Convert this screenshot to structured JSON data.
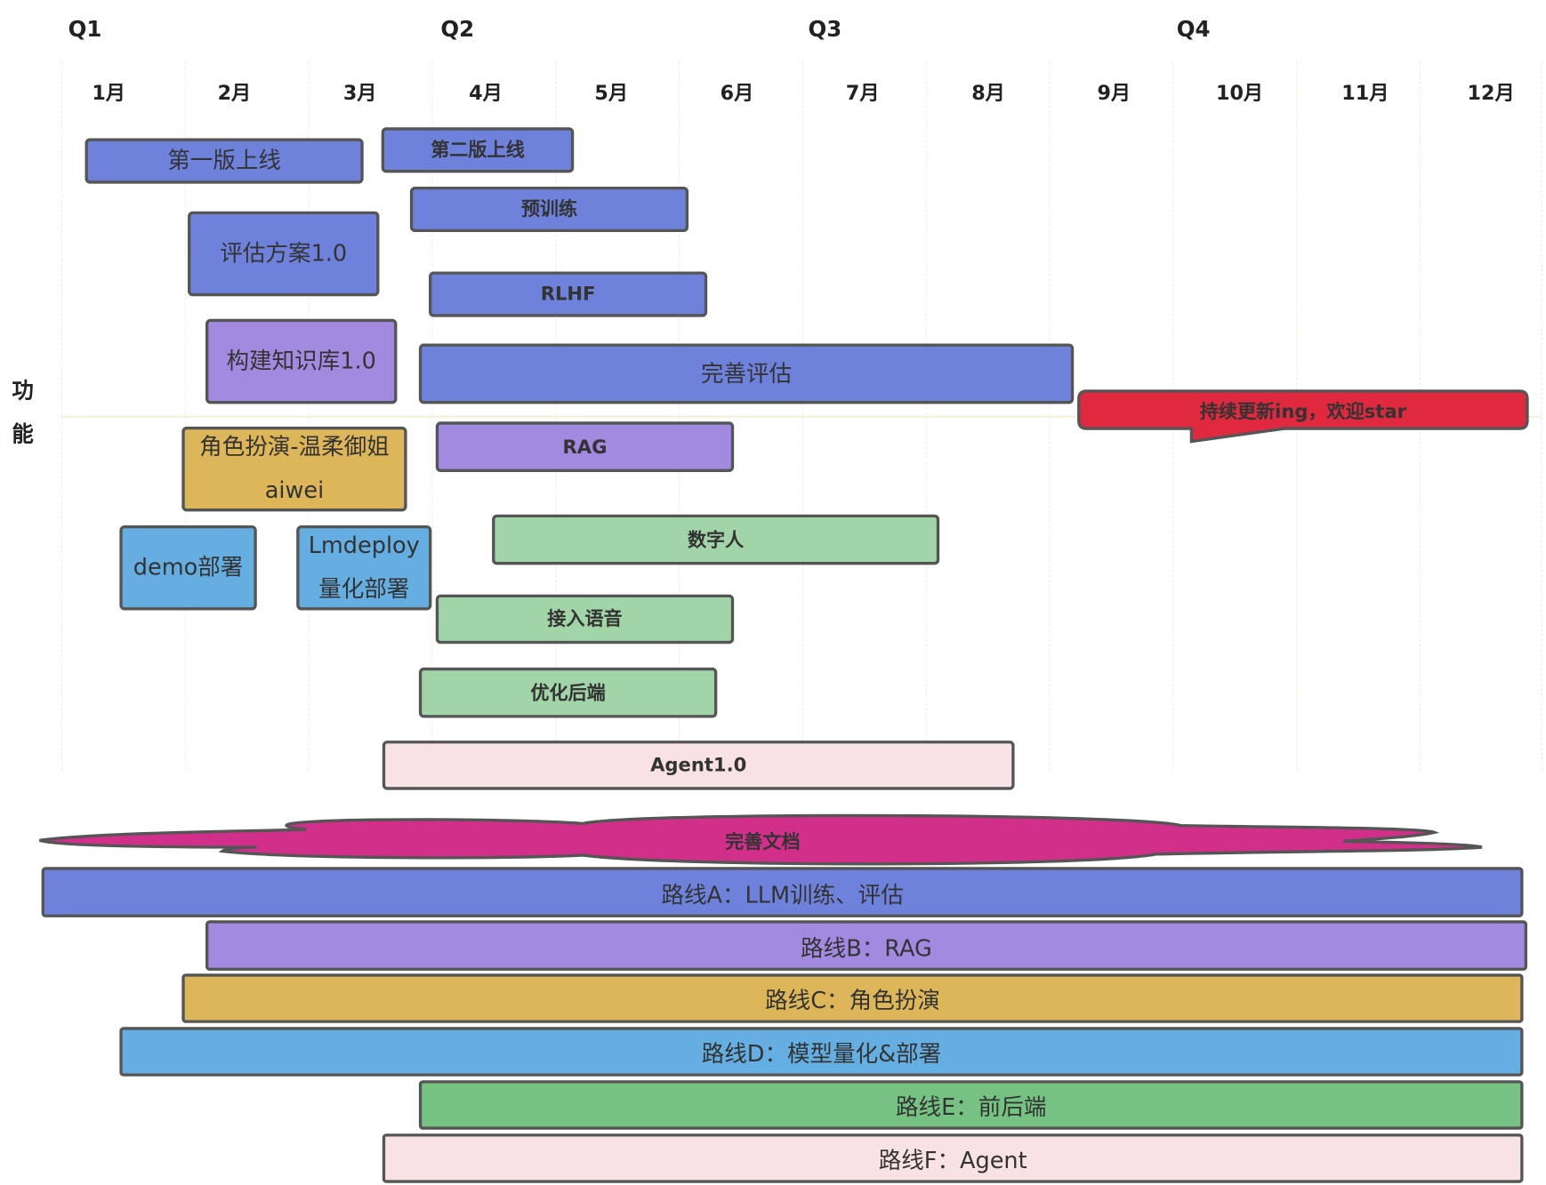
{
  "quarters": [
    "Q1",
    "Q2",
    "Q3",
    "Q4"
  ],
  "months": [
    "1月",
    "2月",
    "3月",
    "4月",
    "5月",
    "6月",
    "7月",
    "8月",
    "9月",
    "10月",
    "11月",
    "12月"
  ],
  "y_label": [
    "功",
    "能"
  ],
  "colors": {
    "route_a": "#6e82dc",
    "route_b": "#a18ae0",
    "route_c": "#deb65a",
    "route_d": "#64aee2",
    "route_e": "#76c283",
    "route_e_light": "#a1d4a6",
    "route_f": "#f9e2e6",
    "highlight": "#e0283e",
    "docs": "#d22f8a"
  },
  "tasks": [
    {
      "label": "第一版上线",
      "color": "#6e82dc"
    },
    {
      "label": "第二版上线",
      "color": "#6e82dc"
    },
    {
      "label": "预训练",
      "color": "#6e82dc"
    },
    {
      "label": "评估方案1.0",
      "color": "#6e82dc"
    },
    {
      "label": "RLHF",
      "color": "#6e82dc"
    },
    {
      "label": "构建知识库1.0",
      "color": "#a18ae0"
    },
    {
      "label": "完善评估",
      "color": "#6e82dc"
    },
    {
      "label": "角色扮演-温柔御姐\naiwei",
      "color": "#deb65a"
    },
    {
      "label": "RAG",
      "color": "#a18ae0"
    },
    {
      "label": "demo部署",
      "color": "#64aee2"
    },
    {
      "label": "Lmdeploy\n量化部署",
      "color": "#64aee2"
    },
    {
      "label": "数字人",
      "color": "#a1d4a6"
    },
    {
      "label": "接入语音",
      "color": "#a1d4a6"
    },
    {
      "label": "优化后端",
      "color": "#a1d4a6"
    },
    {
      "label": "Agent1.0",
      "color": "#f9e2e6"
    }
  ],
  "callout": "持续更新ing，欢迎star",
  "docs": "完善文档",
  "routes": [
    {
      "label": "路线A：LLM训练、评估",
      "color": "#6e82dc"
    },
    {
      "label": "路线B：RAG",
      "color": "#a18ae0"
    },
    {
      "label": "路线C：角色扮演",
      "color": "#deb65a"
    },
    {
      "label": "路线D：模型量化&部署",
      "color": "#64aee2"
    },
    {
      "label": "路线E：前后端",
      "color": "#76c283"
    },
    {
      "label": "路线F：Agent",
      "color": "#f9e2e6"
    }
  ]
}
